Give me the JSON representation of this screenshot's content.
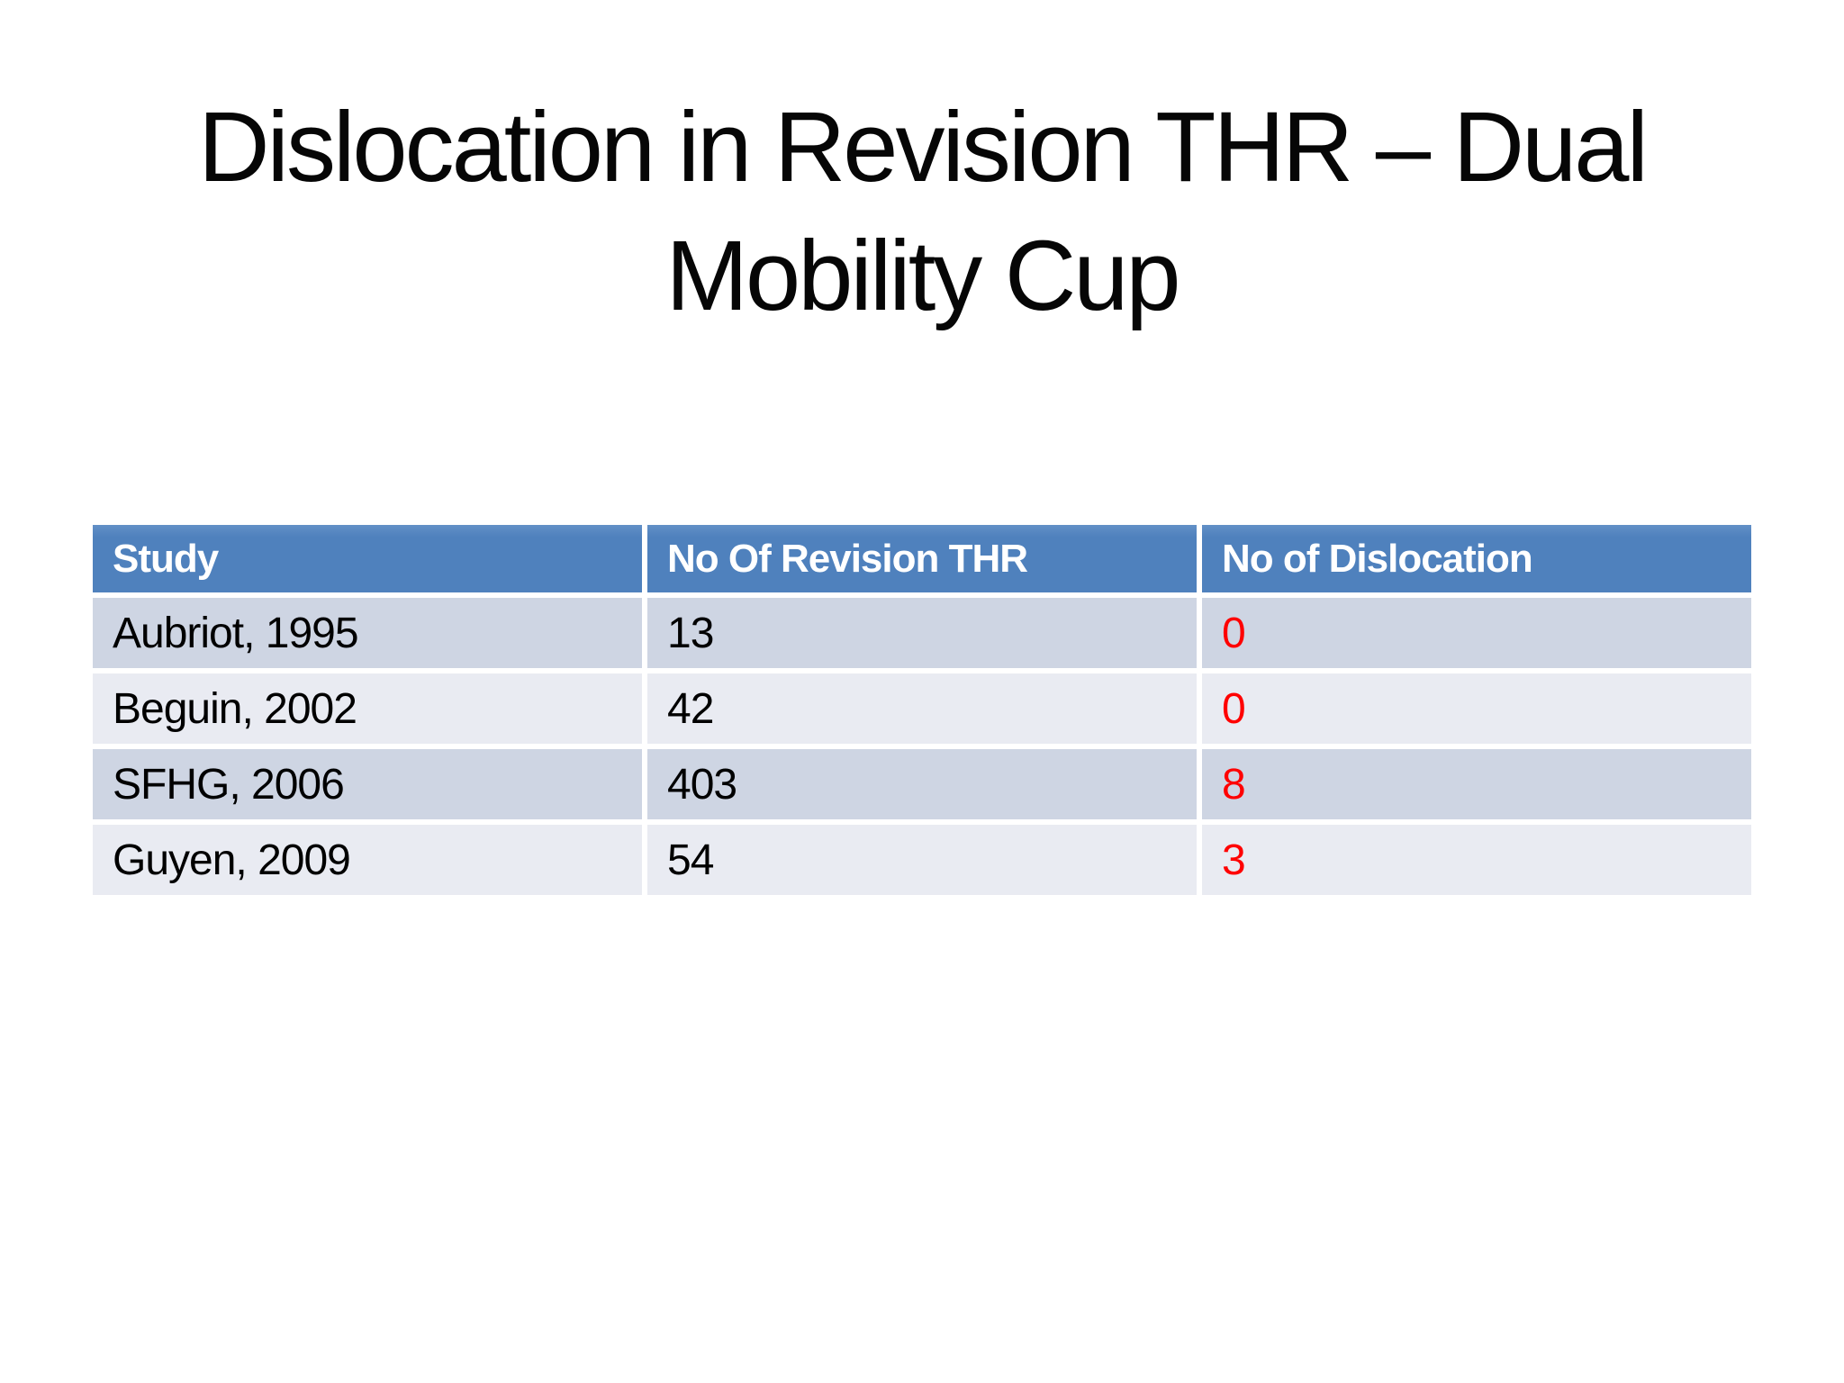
{
  "slide": {
    "title": {
      "line1": "Dislocation in Revision THR – Dual",
      "line2": "Mobility Cup"
    }
  },
  "table": {
    "columns": [
      "Study",
      "No Of Revision THR",
      "No of Dislocation"
    ],
    "rows": [
      {
        "study": "Aubriot, 1995",
        "revisions": "13",
        "dislocations": "0"
      },
      {
        "study": "Beguin, 2002",
        "revisions": "42",
        "dislocations": "0"
      },
      {
        "study": "SFHG, 2006",
        "revisions": "403",
        "dislocations": "8"
      },
      {
        "study": "Guyen, 2009",
        "revisions": "54",
        "dislocations": "3"
      }
    ]
  },
  "colors": {
    "header_bg": "#4F81BD",
    "header_text": "#FFFFFF",
    "band_dark": "#CED5E3",
    "band_light": "#E9EBF2",
    "body_text": "#000000",
    "dislocation_text": "#FF0000",
    "slide_background": "#FFFFFF"
  }
}
